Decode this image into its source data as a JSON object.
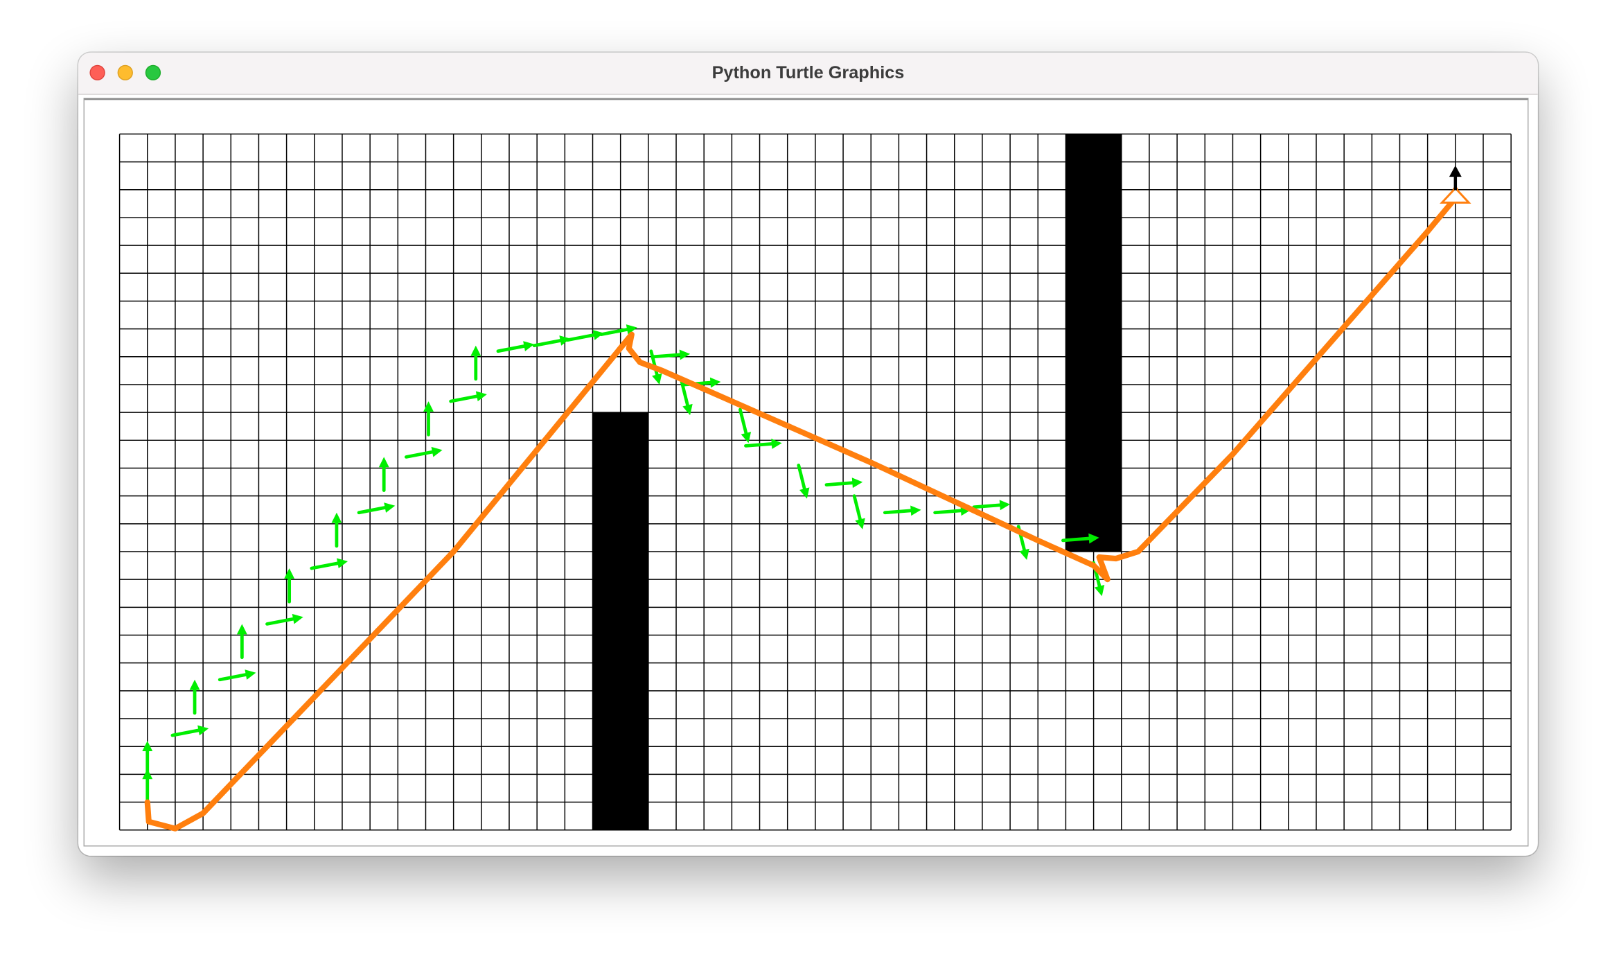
{
  "window": {
    "title": "Python Turtle Graphics",
    "buttons": [
      "close",
      "minimize",
      "zoom"
    ]
  },
  "canvas": {
    "background": "#ffffff",
    "grid": {
      "columns": 50,
      "rows": 25,
      "line_color": "#000000"
    },
    "obstacles": [
      {
        "col": 17,
        "row": 10,
        "width": 2,
        "height": 15
      },
      {
        "col": 34,
        "row": 0,
        "width": 2,
        "height": 15
      }
    ],
    "obstacle_color": "#000000",
    "path_color": "#ff7f0e",
    "vector_color": "#00ee00",
    "turtle_color": "#000000",
    "path_points": [
      [
        1,
        24
      ],
      [
        1.05,
        24.7
      ],
      [
        2,
        24.95
      ],
      [
        3,
        24.4
      ],
      [
        12,
        15
      ],
      [
        18.4,
        7.2
      ],
      [
        18.3,
        7.7
      ],
      [
        18.7,
        8.2
      ],
      [
        19.5,
        8.5
      ],
      [
        27,
        11.8
      ],
      [
        33,
        14.6
      ],
      [
        35,
        15.5
      ],
      [
        35.5,
        16.0
      ],
      [
        35.2,
        15.2
      ],
      [
        35.8,
        15.25
      ],
      [
        36.6,
        15.0
      ],
      [
        40,
        11.5
      ],
      [
        47,
        3.5
      ],
      [
        48,
        2.3
      ],
      [
        48,
        2.0
      ]
    ],
    "vectors": [
      {
        "x": 1.0,
        "y": 24,
        "dx": 0,
        "dy": -1.2
      },
      {
        "x": 1.0,
        "y": 23,
        "dx": 0,
        "dy": -1.2
      },
      {
        "x": 1.9,
        "y": 21.6,
        "dx": 1.3,
        "dy": -0.25
      },
      {
        "x": 2.7,
        "y": 20.8,
        "dx": 0,
        "dy": -1.2
      },
      {
        "x": 3.6,
        "y": 19.6,
        "dx": 1.3,
        "dy": -0.25
      },
      {
        "x": 4.4,
        "y": 18.8,
        "dx": 0,
        "dy": -1.2
      },
      {
        "x": 5.3,
        "y": 17.6,
        "dx": 1.3,
        "dy": -0.25
      },
      {
        "x": 6.1,
        "y": 16.8,
        "dx": 0,
        "dy": -1.2
      },
      {
        "x": 6.9,
        "y": 15.6,
        "dx": 1.3,
        "dy": -0.25
      },
      {
        "x": 7.8,
        "y": 14.8,
        "dx": 0,
        "dy": -1.2
      },
      {
        "x": 8.6,
        "y": 13.6,
        "dx": 1.3,
        "dy": -0.25
      },
      {
        "x": 9.5,
        "y": 12.8,
        "dx": 0,
        "dy": -1.2
      },
      {
        "x": 10.3,
        "y": 11.6,
        "dx": 1.3,
        "dy": -0.25
      },
      {
        "x": 11.1,
        "y": 10.8,
        "dx": 0,
        "dy": -1.2
      },
      {
        "x": 11.9,
        "y": 9.6,
        "dx": 1.3,
        "dy": -0.25
      },
      {
        "x": 12.8,
        "y": 8.8,
        "dx": 0,
        "dy": -1.2
      },
      {
        "x": 13.6,
        "y": 7.8,
        "dx": 1.3,
        "dy": -0.25
      },
      {
        "x": 14.9,
        "y": 7.6,
        "dx": 1.3,
        "dy": -0.25
      },
      {
        "x": 16.1,
        "y": 7.4,
        "dx": 1.3,
        "dy": -0.25
      },
      {
        "x": 17.3,
        "y": 7.2,
        "dx": 1.3,
        "dy": -0.25
      },
      {
        "x": 19.1,
        "y": 7.8,
        "dx": 0.3,
        "dy": 1.2
      },
      {
        "x": 19.2,
        "y": 8.0,
        "dx": 1.3,
        "dy": -0.1
      },
      {
        "x": 20.2,
        "y": 8.9,
        "dx": 0.3,
        "dy": 1.2
      },
      {
        "x": 20.3,
        "y": 9.0,
        "dx": 1.3,
        "dy": -0.1
      },
      {
        "x": 22.3,
        "y": 9.9,
        "dx": 0.3,
        "dy": 1.2
      },
      {
        "x": 22.5,
        "y": 11.2,
        "dx": 1.3,
        "dy": -0.1
      },
      {
        "x": 24.4,
        "y": 11.9,
        "dx": 0.3,
        "dy": 1.2
      },
      {
        "x": 25.4,
        "y": 12.6,
        "dx": 1.3,
        "dy": -0.1
      },
      {
        "x": 26.4,
        "y": 13.0,
        "dx": 0.3,
        "dy": 1.2
      },
      {
        "x": 27.5,
        "y": 13.6,
        "dx": 1.3,
        "dy": -0.1
      },
      {
        "x": 29.3,
        "y": 13.6,
        "dx": 1.3,
        "dy": -0.1
      },
      {
        "x": 30.7,
        "y": 13.4,
        "dx": 1.3,
        "dy": -0.1
      },
      {
        "x": 32.3,
        "y": 14.1,
        "dx": 0.3,
        "dy": 1.2
      },
      {
        "x": 33.9,
        "y": 14.6,
        "dx": 1.3,
        "dy": -0.1
      },
      {
        "x": 35.0,
        "y": 15.4,
        "dx": 0.3,
        "dy": 1.2
      }
    ],
    "turtle": {
      "x": 48,
      "y": 1.5,
      "heading": "up"
    }
  }
}
